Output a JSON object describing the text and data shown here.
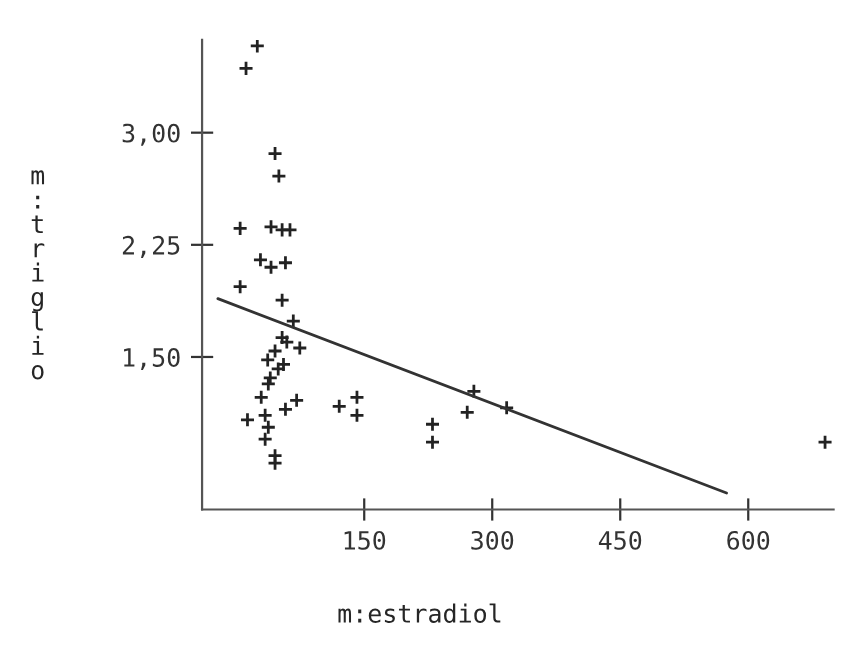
{
  "chart_data": {
    "type": "scatter",
    "xlabel": "m:estradiol",
    "ylabel": "m:triglio",
    "xlim": [
      -40,
      700
    ],
    "ylim": [
      0.48,
      3.62
    ],
    "xticks": [
      150,
      300,
      450,
      600
    ],
    "yticks": [
      {
        "value": 1.5,
        "label": "1,50"
      },
      {
        "value": 2.25,
        "label": "2,25"
      },
      {
        "value": 3.0,
        "label": "3,00"
      }
    ],
    "grid": false,
    "series": [
      {
        "marker": "cross",
        "color": "#222222",
        "x": [
          24.7,
          11.5,
          45.5,
          50,
          4.6,
          40.8,
          53.8,
          63,
          28.4,
          40.8,
          57.7,
          4.6,
          53.8,
          66.9,
          53.8,
          59.3,
          45.5,
          74.5,
          36.9,
          55.4,
          49.2,
          39.9,
          37.6,
          29.3,
          70.8,
          57.7,
          13.2,
          33.9,
          37.6,
          33.9,
          45.5,
          45.5,
          120.7,
          141.5,
          141.5,
          230,
          230,
          270.7,
          278.5,
          316.9,
          690
        ],
        "values": [
          3.58,
          3.43,
          2.86,
          2.71,
          2.36,
          2.37,
          2.35,
          2.35,
          2.15,
          2.1,
          2.13,
          1.97,
          1.88,
          1.74,
          1.63,
          1.6,
          1.54,
          1.56,
          1.48,
          1.45,
          1.42,
          1.36,
          1.32,
          1.23,
          1.21,
          1.15,
          1.08,
          1.11,
          1.03,
          0.95,
          0.84,
          0.79,
          1.17,
          1.23,
          1.11,
          1.05,
          0.93,
          1.13,
          1.27,
          1.16,
          0.93
        ]
      },
      {
        "type": "line",
        "marker": "none",
        "color": "#333333",
        "x": [
          -21.5,
          574.6
        ],
        "values": [
          1.89,
          0.59
        ]
      }
    ]
  }
}
